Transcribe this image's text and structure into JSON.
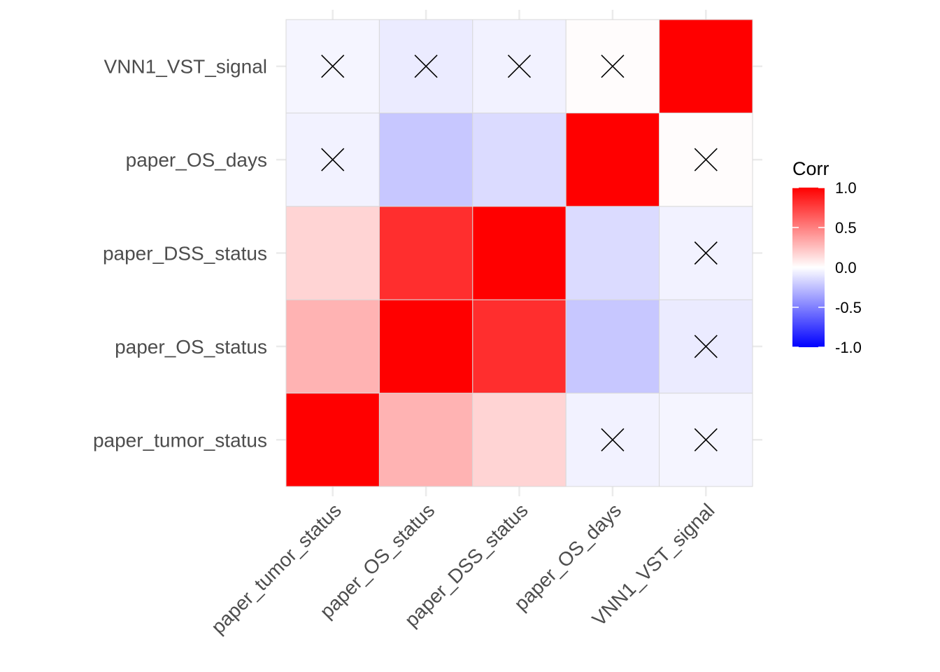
{
  "chart_data": {
    "type": "heatmap",
    "title": "",
    "xlabel": "",
    "ylabel": "",
    "variables": [
      "paper_tumor_status",
      "paper_OS_status",
      "paper_DSS_status",
      "paper_OS_days",
      "VNN1_VST_signal"
    ],
    "matrix": [
      [
        1.0,
        0.3,
        0.17,
        -0.05,
        -0.04
      ],
      [
        0.3,
        1.0,
        0.82,
        -0.22,
        -0.08
      ],
      [
        0.17,
        0.82,
        1.0,
        -0.14,
        -0.05
      ],
      [
        -0.05,
        -0.22,
        -0.14,
        1.0,
        0.01
      ],
      [
        -0.04,
        -0.08,
        -0.05,
        0.01,
        1.0
      ]
    ],
    "insignificant": [
      [
        0,
        3
      ],
      [
        0,
        4
      ],
      [
        1,
        4
      ],
      [
        2,
        4
      ],
      [
        3,
        0
      ],
      [
        3,
        4
      ],
      [
        4,
        0
      ],
      [
        4,
        1
      ],
      [
        4,
        2
      ],
      [
        4,
        3
      ]
    ],
    "legend": {
      "title": "Corr",
      "ticks": [
        1.0,
        0.5,
        0.0,
        -0.5,
        -1.0
      ],
      "tick_labels": [
        "1.0",
        "0.5",
        "0.0",
        "-0.5",
        "-1.0"
      ],
      "range": [
        -1,
        1
      ],
      "low_color": "#0000ff",
      "mid_color": "#ffffff",
      "high_color": "#ff0000",
      "placement": "right"
    }
  }
}
